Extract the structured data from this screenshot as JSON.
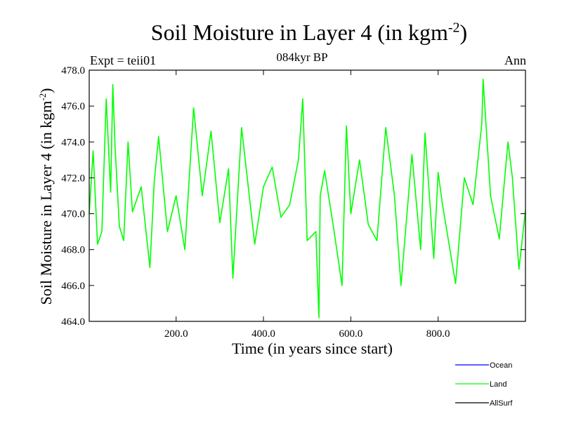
{
  "chart_data": {
    "type": "line",
    "title_main": "Soil Moisture in Layer 4 (in kgm",
    "title_sup": "-2",
    "title_close": ")",
    "subtitle": "084kyr BP",
    "expt_label": "Expt = teii01",
    "season_label": "Ann",
    "xlabel": "Time (in years since start)",
    "ylabel_main": "Soil Moisture in Layer 4 (in kgm",
    "ylabel_sup": "-2",
    "ylabel_close": ")",
    "xlim": [
      1,
      1000
    ],
    "ylim": [
      464.0,
      478.0
    ],
    "xticks": [
      200.0,
      400.0,
      600.0,
      800.0
    ],
    "xtick_labels": [
      "200.0",
      "400.0",
      "600.0",
      "800.0"
    ],
    "yticks": [
      464.0,
      466.0,
      468.0,
      470.0,
      472.0,
      474.0,
      476.0,
      478.0
    ],
    "ytick_labels": [
      "464.0",
      "466.0",
      "468.0",
      "470.0",
      "472.0",
      "474.0",
      "476.0",
      "478.0"
    ],
    "legend": [
      {
        "name": "Ocean",
        "color": "#0000ff"
      },
      {
        "name": "Land",
        "color": "#00ff00"
      },
      {
        "name": "AllSurf",
        "color": "#000000"
      }
    ],
    "series": [
      {
        "name": "Land",
        "color": "#00ff00",
        "x": [
          1,
          10,
          20,
          30,
          40,
          50,
          55,
          60,
          70,
          80,
          90,
          100,
          120,
          140,
          150,
          160,
          180,
          200,
          220,
          240,
          260,
          280,
          300,
          320,
          330,
          350,
          380,
          400,
          420,
          440,
          460,
          480,
          490,
          500,
          520,
          527,
          530,
          540,
          560,
          580,
          590,
          600,
          620,
          640,
          660,
          680,
          700,
          715,
          740,
          760,
          770,
          790,
          800,
          810,
          840,
          860,
          880,
          900,
          903,
          920,
          940,
          960,
          970,
          985,
          1000
        ],
        "y": [
          470.0,
          473.5,
          468.3,
          469.0,
          476.4,
          471.2,
          477.2,
          473.8,
          469.3,
          468.5,
          474.0,
          470.1,
          471.5,
          467.0,
          471.8,
          474.3,
          469.0,
          471.0,
          468.0,
          475.9,
          471.0,
          474.6,
          469.5,
          472.5,
          466.4,
          474.8,
          468.3,
          471.5,
          472.6,
          469.8,
          470.5,
          473.0,
          476.4,
          468.5,
          469.0,
          464.2,
          471.0,
          472.4,
          469.3,
          466.0,
          474.9,
          470.0,
          473.0,
          469.4,
          468.5,
          474.8,
          471.0,
          466.0,
          473.3,
          468.0,
          474.5,
          467.5,
          472.3,
          470.5,
          466.1,
          472.0,
          470.5,
          475.0,
          477.5,
          471.0,
          468.6,
          474.0,
          472.0,
          466.9,
          470.2
        ]
      }
    ]
  }
}
